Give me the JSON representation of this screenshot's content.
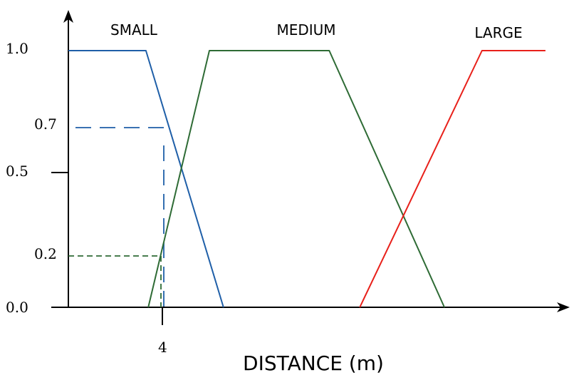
{
  "chart_data": {
    "type": "line",
    "title": "",
    "xlabel": "DISTANCE (m)",
    "ylabel": "",
    "x_ticks": [
      "4"
    ],
    "y_ticks": [
      "0.0",
      "0.2",
      "0.5",
      "0.7",
      "1.0"
    ],
    "ylim": [
      0,
      1
    ],
    "series": [
      {
        "name": "SMALL",
        "color": "#1f5fa8",
        "points": [
          [
            0,
            1.0
          ],
          [
            3.3,
            1.0
          ],
          [
            6.6,
            0.0
          ]
        ]
      },
      {
        "name": "MEDIUM",
        "color": "#2e6b35",
        "points": [
          [
            3.4,
            0.0
          ],
          [
            6.0,
            1.0
          ],
          [
            11.1,
            1.0
          ],
          [
            16.0,
            0.0
          ]
        ]
      },
      {
        "name": "LARGE",
        "color": "#e8201a",
        "points": [
          [
            12.4,
            0.0
          ],
          [
            17.6,
            1.0
          ],
          [
            20.3,
            1.0
          ]
        ]
      }
    ],
    "guides": [
      {
        "series": "SMALL",
        "x": 4,
        "y": 0.7,
        "color": "#1f5fa8"
      },
      {
        "series": "MEDIUM",
        "x": 4,
        "y": 0.2,
        "color": "#2e6b35"
      }
    ],
    "grid": false,
    "legend": "none"
  }
}
